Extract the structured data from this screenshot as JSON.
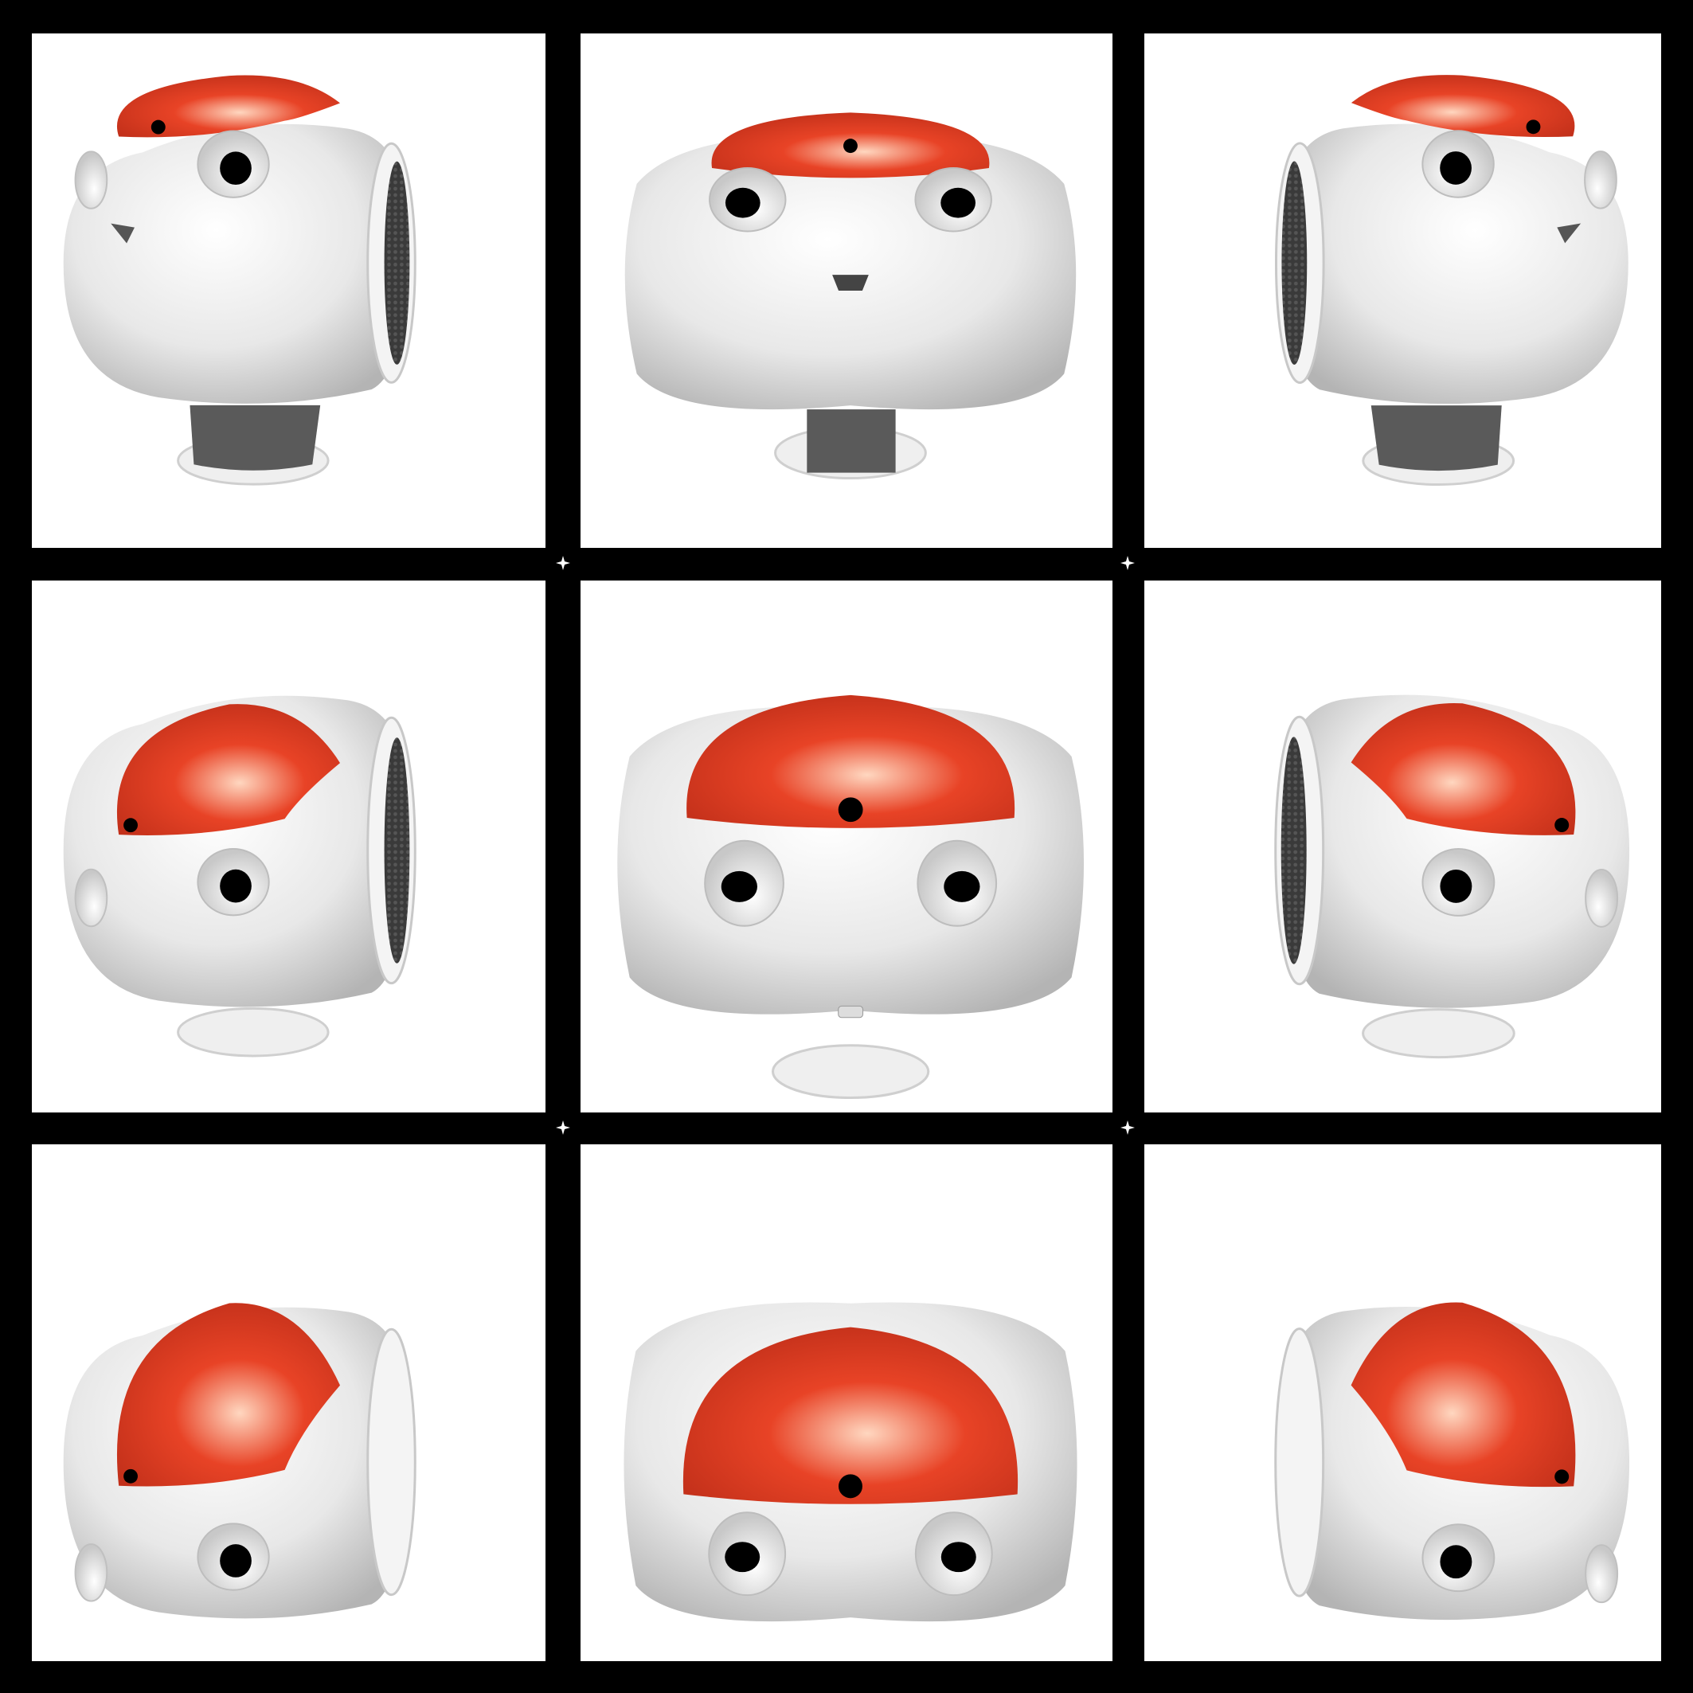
{
  "grid": {
    "rows": 3,
    "cols": 3,
    "background": "#000000",
    "cell_background": "#ffffff"
  },
  "colors": {
    "head_shell": "#e8e8e8",
    "head_highlight": "#ffffff",
    "head_shadow": "#b4b4b4",
    "crown_base": "#e84326",
    "crown_highlight": "#ffd7c0",
    "crown_shadow": "#c2301a",
    "sensor_hole": "#000000",
    "speaker_mesh": "#555555",
    "neck_dark": "#5a5a5a"
  },
  "views": [
    {
      "row": 0,
      "col": 0,
      "subject": "robot-head",
      "tilt": "level",
      "facing": "left"
    },
    {
      "row": 0,
      "col": 1,
      "subject": "robot-head",
      "tilt": "level",
      "facing": "front"
    },
    {
      "row": 0,
      "col": 2,
      "subject": "robot-head",
      "tilt": "level",
      "facing": "right"
    },
    {
      "row": 1,
      "col": 0,
      "subject": "robot-head",
      "tilt": "from-above",
      "facing": "left"
    },
    {
      "row": 1,
      "col": 1,
      "subject": "robot-head",
      "tilt": "from-above",
      "facing": "front"
    },
    {
      "row": 1,
      "col": 2,
      "subject": "robot-head",
      "tilt": "from-above",
      "facing": "right"
    },
    {
      "row": 2,
      "col": 0,
      "subject": "robot-head",
      "tilt": "high-above",
      "facing": "left"
    },
    {
      "row": 2,
      "col": 1,
      "subject": "robot-head",
      "tilt": "high-above",
      "facing": "front"
    },
    {
      "row": 2,
      "col": 2,
      "subject": "robot-head",
      "tilt": "high-above",
      "facing": "right"
    }
  ]
}
